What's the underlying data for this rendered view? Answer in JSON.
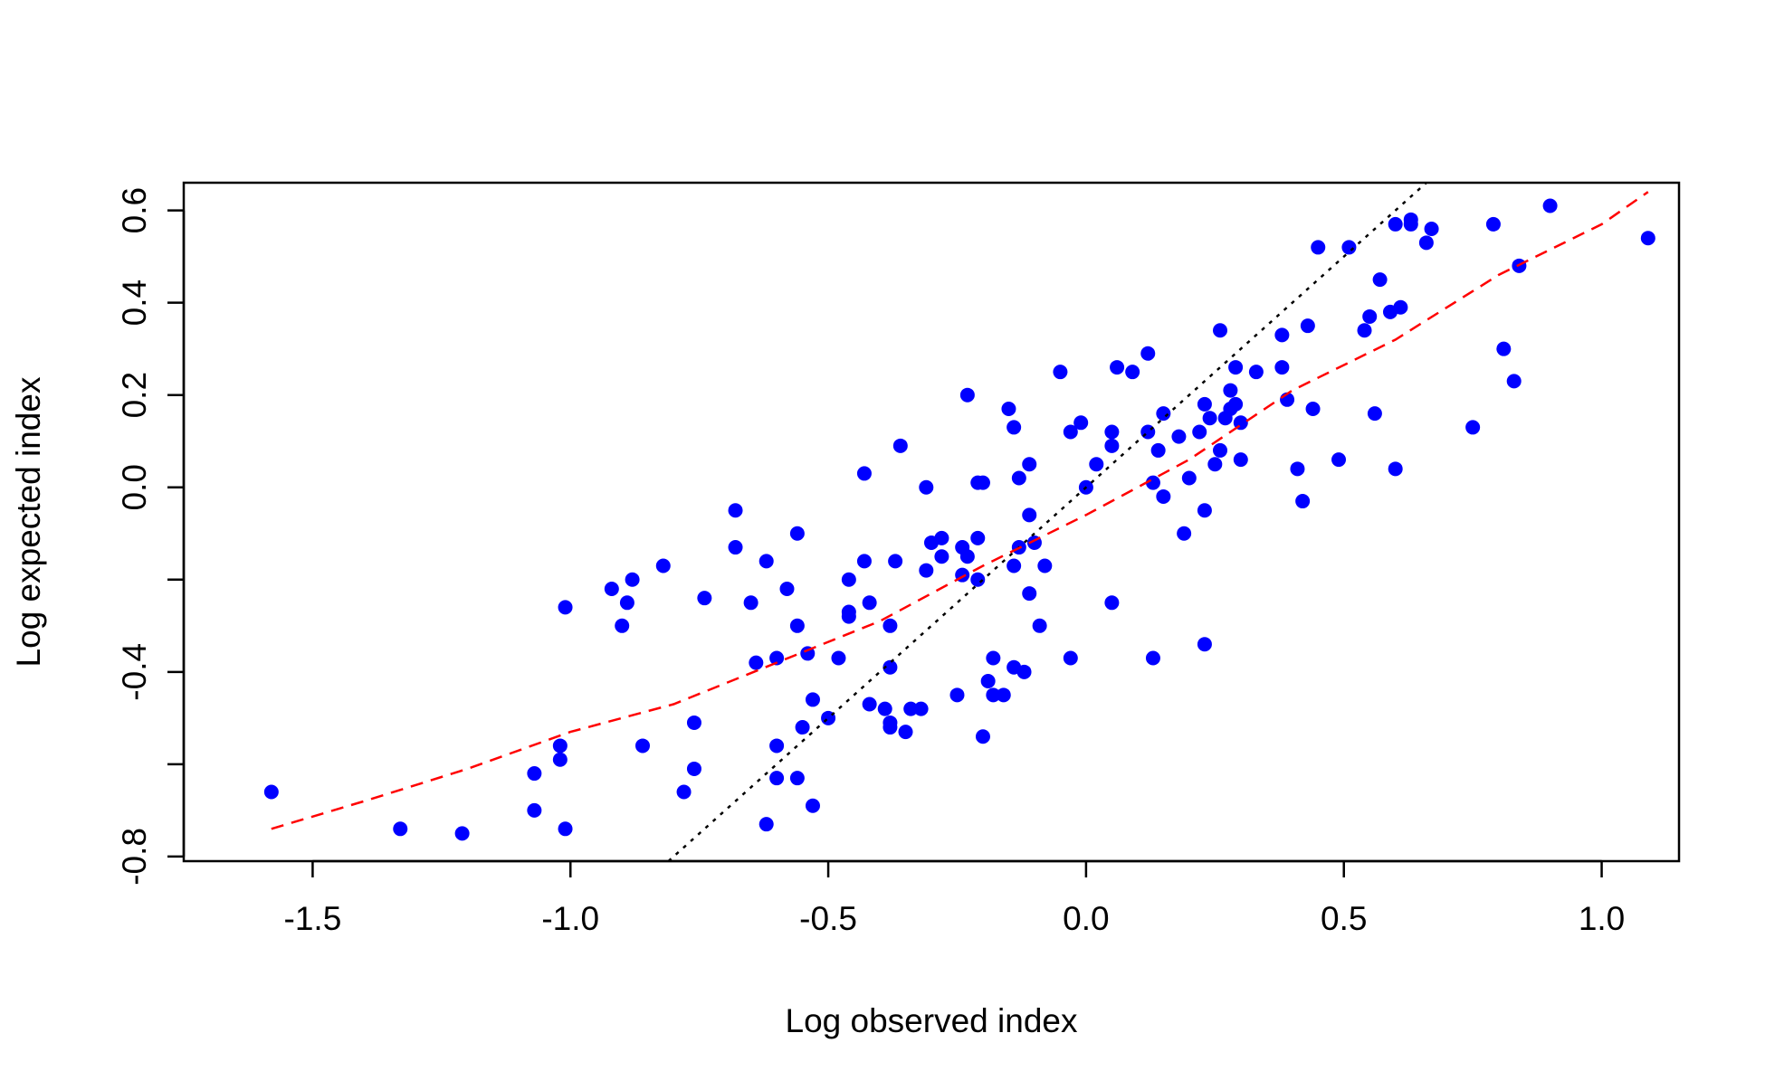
{
  "chart_data": {
    "type": "scatter",
    "title": "",
    "xlabel": "Log observed index",
    "ylabel": "Log expected index",
    "xlim": [
      -1.75,
      1.15
    ],
    "ylim": [
      -0.81,
      0.66
    ],
    "xticks": [
      -1.5,
      -1.0,
      -0.5,
      0.0,
      0.5,
      1.0
    ],
    "xtick_labels": [
      "-1.5",
      "-1.0",
      "-0.5",
      "0.0",
      "0.5",
      "1.0"
    ],
    "yticks": [
      -0.8,
      -0.6,
      -0.4,
      -0.2,
      0.0,
      0.2,
      0.4,
      0.6
    ],
    "ytick_labels": [
      "-0.8",
      "",
      "-0.4",
      "",
      "0.0",
      "0.2",
      "0.4",
      "0.6"
    ],
    "grid": false,
    "legend": "none",
    "colors": {
      "points": "#0000ff",
      "identity_line": "#000000",
      "trend_line": "#ff0000",
      "axes": "#000000"
    },
    "series": [
      {
        "kind": "points",
        "points": [
          [
            -1.58,
            -0.66
          ],
          [
            -1.33,
            -0.74
          ],
          [
            -1.21,
            -0.75
          ],
          [
            -1.07,
            -0.62
          ],
          [
            -1.07,
            -0.7
          ],
          [
            -1.02,
            -0.56
          ],
          [
            -1.02,
            -0.59
          ],
          [
            -1.01,
            -0.74
          ],
          [
            -1.01,
            -0.26
          ],
          [
            -0.92,
            -0.22
          ],
          [
            -0.9,
            -0.3
          ],
          [
            -0.89,
            -0.25
          ],
          [
            -0.88,
            -0.2
          ],
          [
            -0.86,
            -0.56
          ],
          [
            -0.82,
            -0.17
          ],
          [
            -0.78,
            -0.66
          ],
          [
            -0.76,
            -0.51
          ],
          [
            -0.76,
            -0.61
          ],
          [
            -0.74,
            -0.24
          ],
          [
            -0.68,
            -0.05
          ],
          [
            -0.68,
            -0.13
          ],
          [
            -0.65,
            -0.25
          ],
          [
            -0.64,
            -0.38
          ],
          [
            -0.62,
            -0.16
          ],
          [
            -0.62,
            -0.73
          ],
          [
            -0.6,
            -0.56
          ],
          [
            -0.6,
            -0.37
          ],
          [
            -0.6,
            -0.63
          ],
          [
            -0.58,
            -0.22
          ],
          [
            -0.56,
            -0.3
          ],
          [
            -0.56,
            -0.1
          ],
          [
            -0.56,
            -0.63
          ],
          [
            -0.55,
            -0.52
          ],
          [
            -0.54,
            -0.36
          ],
          [
            -0.53,
            -0.46
          ],
          [
            -0.53,
            -0.69
          ],
          [
            -0.5,
            -0.5
          ],
          [
            -0.48,
            -0.37
          ],
          [
            -0.46,
            -0.27
          ],
          [
            -0.46,
            -0.28
          ],
          [
            -0.46,
            -0.2
          ],
          [
            -0.43,
            0.03
          ],
          [
            -0.43,
            -0.16
          ],
          [
            -0.42,
            -0.25
          ],
          [
            -0.42,
            -0.47
          ],
          [
            -0.39,
            -0.48
          ],
          [
            -0.38,
            -0.3
          ],
          [
            -0.38,
            -0.39
          ],
          [
            -0.38,
            -0.51
          ],
          [
            -0.38,
            -0.52
          ],
          [
            -0.37,
            -0.16
          ],
          [
            -0.36,
            0.09
          ],
          [
            -0.35,
            -0.53
          ],
          [
            -0.34,
            -0.48
          ],
          [
            -0.32,
            -0.48
          ],
          [
            -0.31,
            -0.18
          ],
          [
            -0.31,
            0.0
          ],
          [
            -0.3,
            -0.12
          ],
          [
            -0.28,
            -0.15
          ],
          [
            -0.28,
            -0.11
          ],
          [
            -0.25,
            -0.45
          ],
          [
            -0.24,
            -0.19
          ],
          [
            -0.24,
            -0.13
          ],
          [
            -0.23,
            -0.15
          ],
          [
            -0.23,
            0.2
          ],
          [
            -0.21,
            0.01
          ],
          [
            -0.2,
            0.01
          ],
          [
            -0.21,
            -0.2
          ],
          [
            -0.21,
            -0.11
          ],
          [
            -0.2,
            -0.54
          ],
          [
            -0.19,
            -0.42
          ],
          [
            -0.18,
            -0.45
          ],
          [
            -0.18,
            -0.37
          ],
          [
            -0.16,
            -0.45
          ],
          [
            -0.15,
            0.17
          ],
          [
            -0.14,
            0.13
          ],
          [
            -0.14,
            -0.39
          ],
          [
            -0.13,
            0.02
          ],
          [
            -0.13,
            -0.13
          ],
          [
            -0.14,
            -0.17
          ],
          [
            -0.12,
            -0.4
          ],
          [
            -0.11,
            0.05
          ],
          [
            -0.11,
            -0.23
          ],
          [
            -0.11,
            -0.06
          ],
          [
            -0.1,
            -0.12
          ],
          [
            -0.09,
            -0.3
          ],
          [
            -0.08,
            -0.17
          ],
          [
            -0.05,
            0.25
          ],
          [
            -0.03,
            -0.37
          ],
          [
            -0.03,
            0.12
          ],
          [
            -0.01,
            0.14
          ],
          [
            0.0,
            0.0
          ],
          [
            0.02,
            0.05
          ],
          [
            0.05,
            0.09
          ],
          [
            0.05,
            0.12
          ],
          [
            0.05,
            -0.25
          ],
          [
            0.06,
            0.26
          ],
          [
            0.09,
            0.25
          ],
          [
            0.12,
            0.29
          ],
          [
            0.12,
            0.12
          ],
          [
            0.13,
            0.01
          ],
          [
            0.13,
            -0.37
          ],
          [
            0.14,
            0.08
          ],
          [
            0.15,
            0.16
          ],
          [
            0.15,
            -0.02
          ],
          [
            0.18,
            0.11
          ],
          [
            0.19,
            -0.1
          ],
          [
            0.2,
            0.02
          ],
          [
            0.22,
            0.12
          ],
          [
            0.23,
            -0.05
          ],
          [
            0.23,
            0.18
          ],
          [
            0.23,
            -0.34
          ],
          [
            0.24,
            0.15
          ],
          [
            0.25,
            0.05
          ],
          [
            0.26,
            0.34
          ],
          [
            0.26,
            0.08
          ],
          [
            0.27,
            0.15
          ],
          [
            0.28,
            0.17
          ],
          [
            0.28,
            0.21
          ],
          [
            0.29,
            0.18
          ],
          [
            0.29,
            0.26
          ],
          [
            0.3,
            0.14
          ],
          [
            0.3,
            0.06
          ],
          [
            0.33,
            0.25
          ],
          [
            0.38,
            0.33
          ],
          [
            0.38,
            0.26
          ],
          [
            0.39,
            0.19
          ],
          [
            0.41,
            0.04
          ],
          [
            0.42,
            -0.03
          ],
          [
            0.43,
            0.35
          ],
          [
            0.44,
            0.17
          ],
          [
            0.45,
            0.52
          ],
          [
            0.49,
            0.06
          ],
          [
            0.51,
            0.52
          ],
          [
            0.54,
            0.34
          ],
          [
            0.55,
            0.37
          ],
          [
            0.56,
            0.16
          ],
          [
            0.57,
            0.45
          ],
          [
            0.59,
            0.38
          ],
          [
            0.6,
            0.04
          ],
          [
            0.6,
            0.57
          ],
          [
            0.61,
            0.39
          ],
          [
            0.63,
            0.57
          ],
          [
            0.63,
            0.58
          ],
          [
            0.66,
            0.53
          ],
          [
            0.67,
            0.56
          ],
          [
            0.75,
            0.13
          ],
          [
            0.79,
            0.57
          ],
          [
            0.81,
            0.3
          ],
          [
            0.83,
            0.23
          ],
          [
            0.84,
            0.48
          ],
          [
            0.9,
            0.61
          ],
          [
            1.09,
            0.54
          ]
        ]
      },
      {
        "kind": "line",
        "style": "dotted",
        "color_key": "identity_line",
        "points": [
          [
            -0.81,
            -0.81
          ],
          [
            0.66,
            0.66
          ]
        ]
      },
      {
        "kind": "line",
        "style": "dashed",
        "color_key": "trend_line",
        "points": [
          [
            -1.58,
            -0.74
          ],
          [
            -1.4,
            -0.68
          ],
          [
            -1.2,
            -0.61
          ],
          [
            -1.0,
            -0.53
          ],
          [
            -0.8,
            -0.47
          ],
          [
            -0.6,
            -0.38
          ],
          [
            -0.4,
            -0.29
          ],
          [
            -0.2,
            -0.17
          ],
          [
            0.0,
            -0.06
          ],
          [
            0.2,
            0.06
          ],
          [
            0.4,
            0.21
          ],
          [
            0.6,
            0.32
          ],
          [
            0.8,
            0.46
          ],
          [
            1.0,
            0.57
          ],
          [
            1.09,
            0.64
          ]
        ]
      }
    ]
  }
}
